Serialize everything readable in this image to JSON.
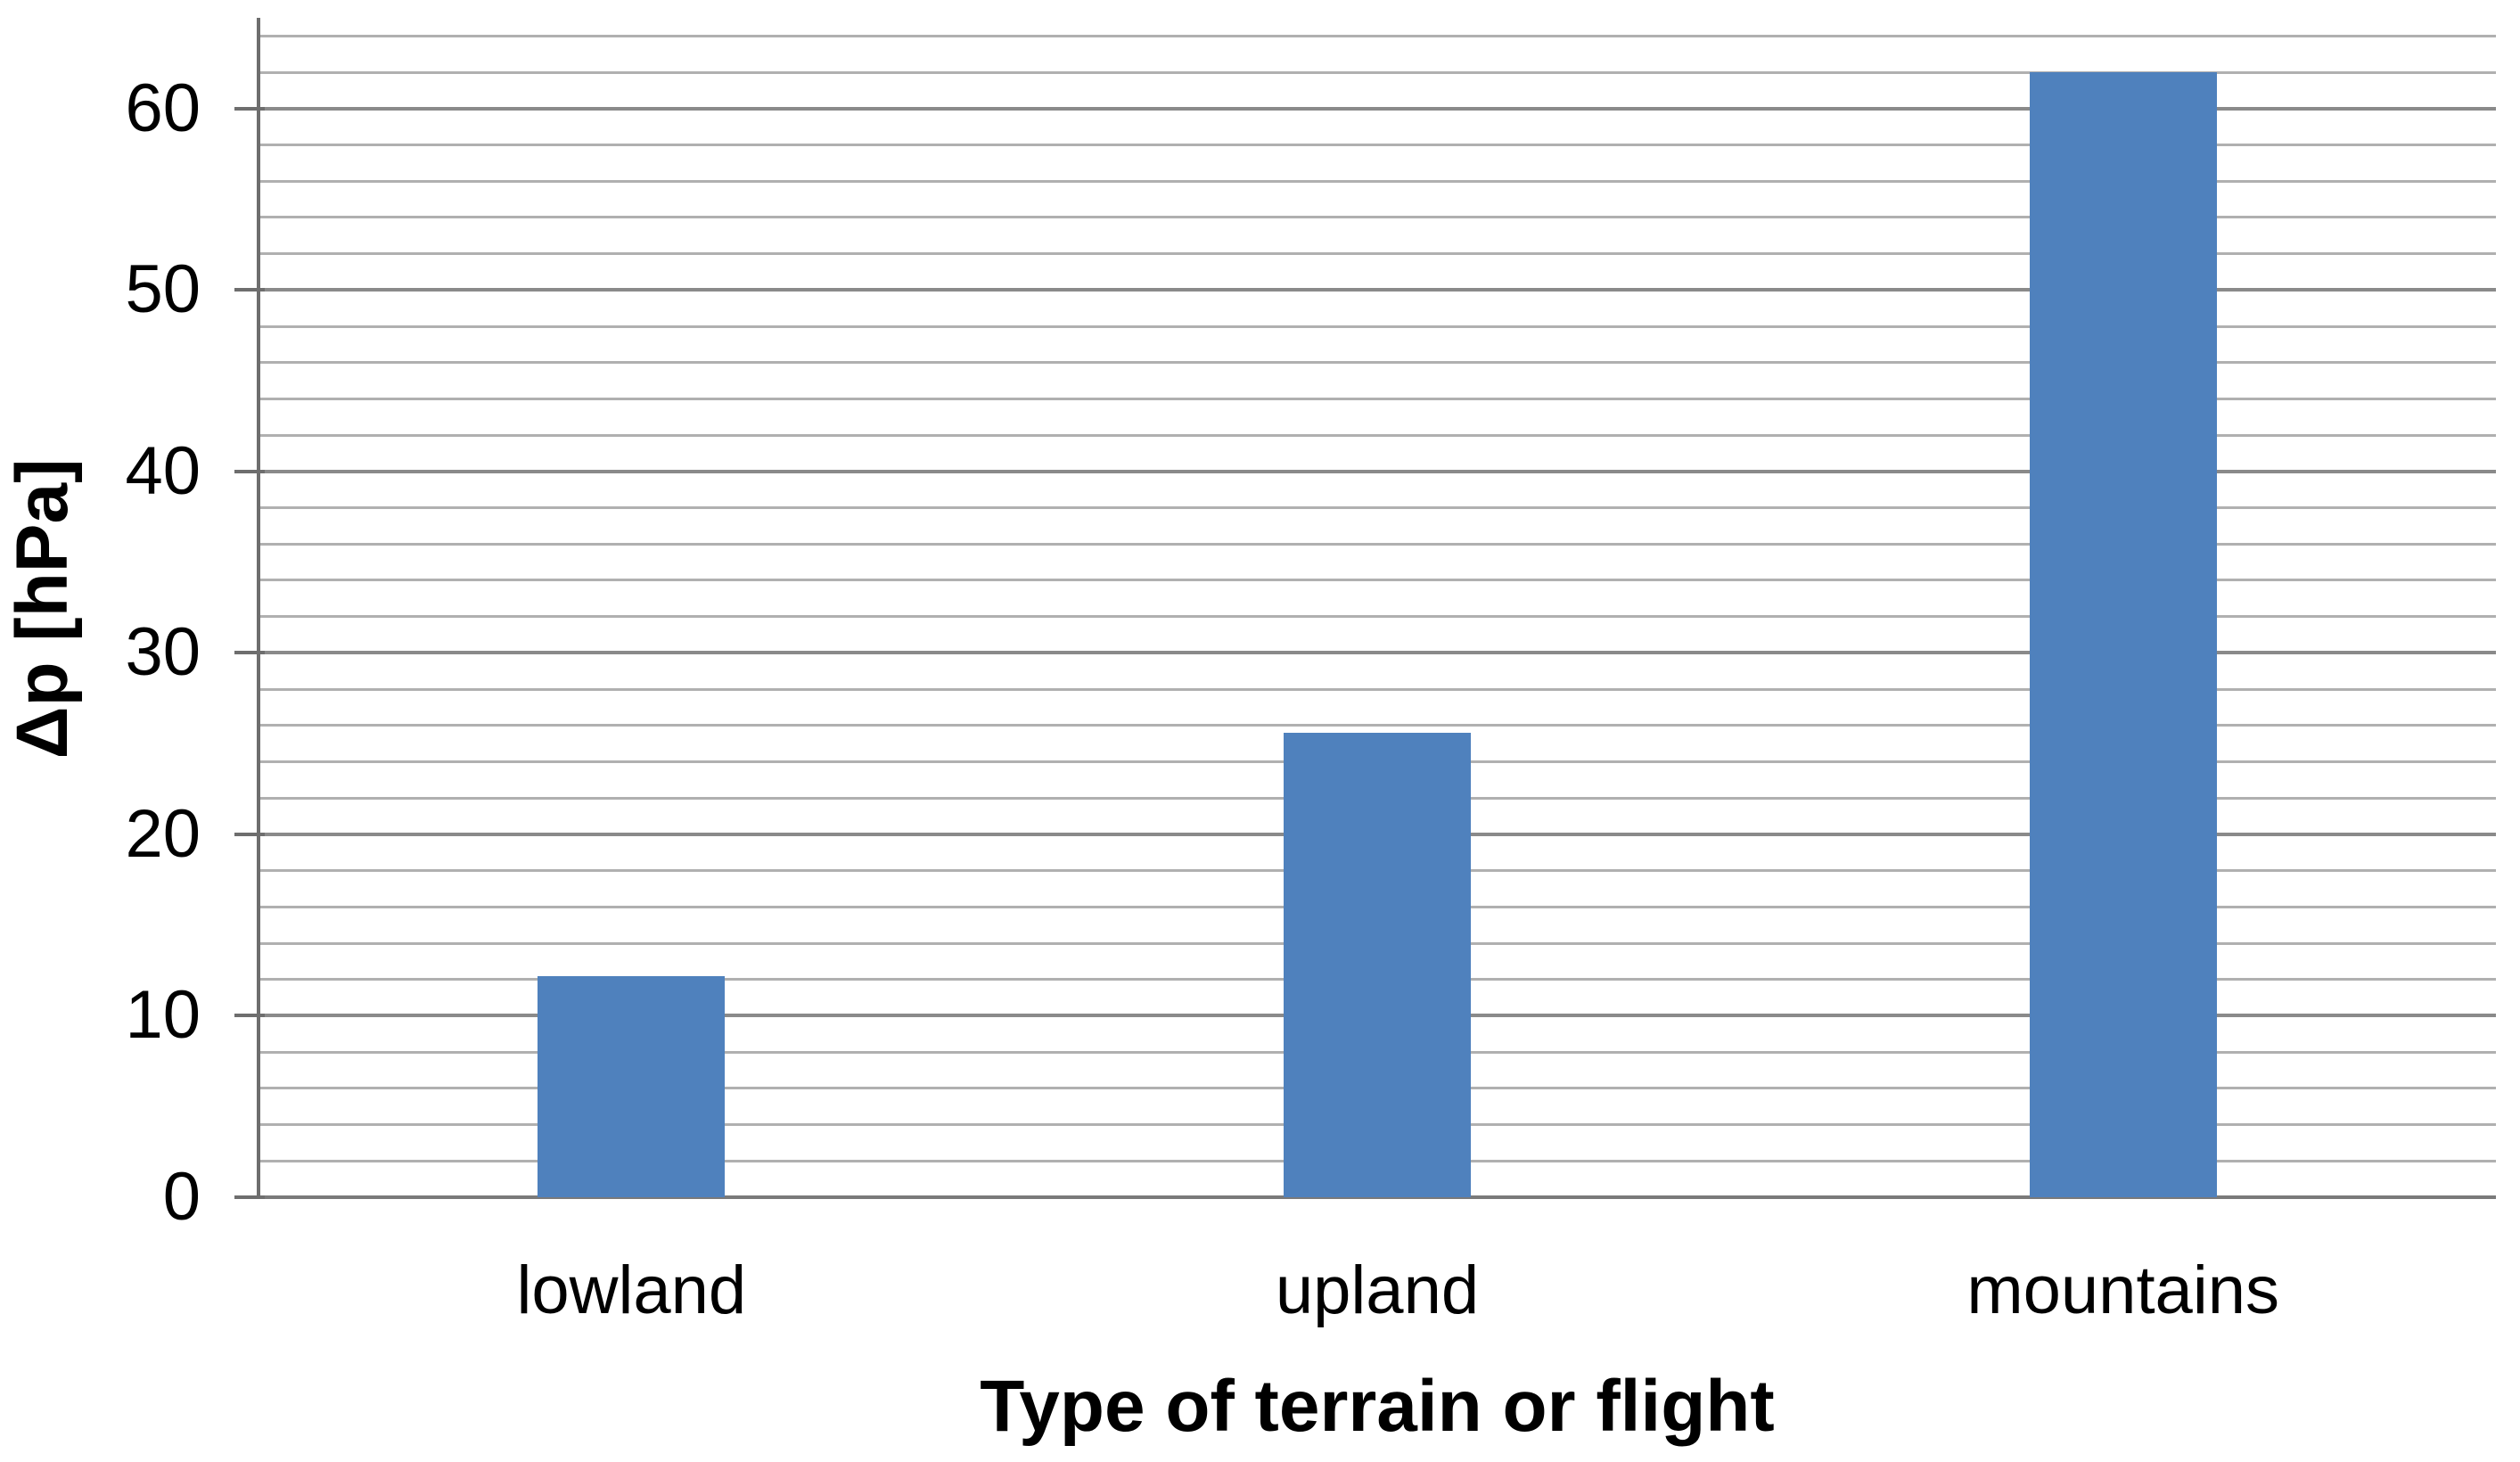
{
  "chart_data": {
    "type": "bar",
    "title": "",
    "categories": [
      "lowland",
      "upland",
      "mountains"
    ],
    "values": [
      12.2,
      25.6,
      62
    ],
    "xlabel": "Type of terrain or flight",
    "ylabel": "Δp [hPa]",
    "ylim": [
      0,
      65
    ],
    "y_tick_values": [
      0,
      10,
      20,
      30,
      40,
      50,
      60
    ],
    "y_tick_labels": [
      "0",
      "10",
      "20",
      "30",
      "40",
      "50",
      "60"
    ],
    "y_major_step": 10,
    "y_minor_step": 2,
    "grid": "horizontal major + minor gridlines",
    "legend_position": "none",
    "bar_color": "#4F81BD"
  },
  "style_colors": {
    "bar": "#4F81BD",
    "major_gridline": "#8A8A8A",
    "minor_gridline": "#B0B0B0",
    "zero_line": "#7A7A7A",
    "axis_line": "#6E6E6E",
    "tick_mark": "#6E6E6E",
    "text": "#000000",
    "background": "#FFFFFF"
  }
}
